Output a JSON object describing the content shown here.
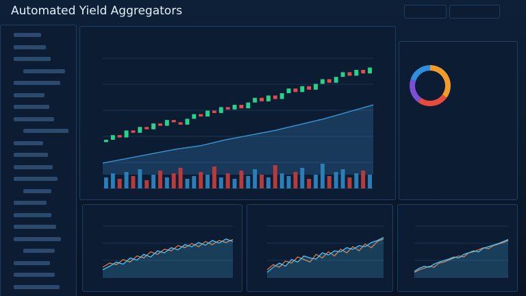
{
  "header": {
    "title": "Automated Yield Aggregators"
  },
  "main_chart": {
    "type": "candlestick",
    "ylim": [
      0,
      100
    ],
    "vlim": [
      0,
      100
    ],
    "open": [
      28,
      30,
      34,
      32,
      38,
      36,
      41,
      39,
      44,
      42,
      47,
      45,
      43,
      48,
      52,
      50,
      55,
      53,
      58,
      56,
      60,
      57,
      62,
      66,
      63,
      68,
      65,
      70,
      74,
      71,
      76,
      73,
      78,
      82,
      79,
      84,
      88,
      85,
      90,
      87
    ],
    "close": [
      30,
      34,
      32,
      38,
      36,
      41,
      39,
      44,
      42,
      47,
      45,
      43,
      48,
      52,
      50,
      55,
      53,
      58,
      56,
      60,
      57,
      62,
      66,
      63,
      68,
      65,
      70,
      74,
      71,
      76,
      73,
      78,
      82,
      79,
      84,
      88,
      85,
      90,
      87,
      92
    ],
    "volume": [
      40,
      55,
      35,
      60,
      45,
      70,
      30,
      50,
      65,
      40,
      55,
      75,
      35,
      45,
      60,
      50,
      80,
      40,
      55,
      35,
      65,
      45,
      70,
      50,
      40,
      85,
      55,
      45,
      60,
      75,
      35,
      50,
      90,
      45,
      60,
      70,
      40,
      55,
      65,
      50
    ],
    "trend": {
      "color": "#3a8fd0",
      "values": [
        10,
        14,
        18,
        22,
        25,
        30,
        34,
        38,
        43,
        48,
        54,
        60
      ]
    }
  },
  "donut": {
    "values": [
      35,
      25,
      20,
      20
    ],
    "colors": [
      "#f39c2b",
      "#e84a3c",
      "#7b4fd6",
      "#2e8fe0"
    ]
  },
  "mini_charts": [
    {
      "type": "line",
      "ylim": [
        0,
        100
      ],
      "series": [
        {
          "color": "#e8783c",
          "values": [
            20,
            28,
            25,
            35,
            30,
            42,
            38,
            50,
            45,
            55,
            52,
            62,
            58,
            66,
            60,
            70,
            64,
            72,
            68,
            74
          ]
        },
        {
          "color": "#4fc3f7",
          "values": [
            15,
            22,
            30,
            26,
            38,
            34,
            45,
            40,
            52,
            48,
            58,
            54,
            64,
            60,
            68,
            63,
            72,
            67,
            75,
            70
          ]
        }
      ]
    },
    {
      "type": "line",
      "ylim": [
        0,
        100
      ],
      "series": [
        {
          "color": "#e8783c",
          "values": [
            15,
            25,
            20,
            32,
            28,
            40,
            35,
            30,
            45,
            38,
            50,
            42,
            55,
            48,
            60,
            52,
            65,
            58,
            70,
            75
          ]
        },
        {
          "color": "#4fc3f7",
          "values": [
            10,
            20,
            28,
            22,
            35,
            30,
            42,
            38,
            36,
            48,
            44,
            52,
            50,
            58,
            55,
            62,
            60,
            68,
            72,
            78
          ]
        }
      ]
    },
    {
      "type": "line",
      "ylim": [
        0,
        100
      ],
      "series": [
        {
          "color": "#e8783c",
          "values": [
            10,
            15,
            18,
            22,
            20,
            28,
            30,
            34,
            38,
            42,
            40,
            48,
            50,
            54,
            58,
            56,
            62,
            65,
            68,
            72
          ]
        },
        {
          "color": "#4fc3f7",
          "values": [
            12,
            18,
            22,
            20,
            26,
            30,
            33,
            36,
            40,
            38,
            45,
            48,
            52,
            50,
            57,
            60,
            63,
            66,
            70,
            74
          ]
        }
      ]
    }
  ]
}
